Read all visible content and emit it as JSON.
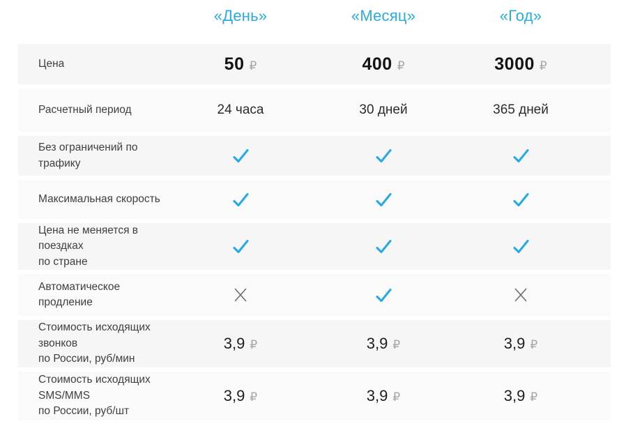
{
  "table": {
    "columns": [
      "«День»",
      "«Месяц»",
      "«Год»"
    ],
    "currency": "₽",
    "colors": {
      "accent_blue": "#29abe2",
      "check": "#29abe2",
      "cross": "#6e6e6e"
    },
    "rows": [
      {
        "label": "Цена",
        "type": "price",
        "values": [
          "50",
          "400",
          "3000"
        ]
      },
      {
        "label": "Расчетный период",
        "type": "text",
        "values": [
          "24 часа",
          "30 дней",
          "365 дней"
        ]
      },
      {
        "label": "Без ограничений по трафику",
        "type": "bool",
        "values": [
          true,
          true,
          true
        ]
      },
      {
        "label": "Максимальная скорость",
        "type": "bool",
        "values": [
          true,
          true,
          true
        ]
      },
      {
        "label": "Цена не меняется в поездках\nпо стране",
        "type": "bool",
        "values": [
          true,
          true,
          true
        ]
      },
      {
        "label": "Автоматическое продление",
        "type": "bool",
        "values": [
          false,
          true,
          false
        ]
      },
      {
        "label": "Стоимость исходящих звонков\nпо России, руб/мин",
        "type": "price-small",
        "values": [
          "3,9",
          "3,9",
          "3,9"
        ]
      },
      {
        "label": "Стоимость исходящих SMS/MMS\nпо России, руб/шт",
        "type": "price-small",
        "values": [
          "3,9",
          "3,9",
          "3,9"
        ]
      }
    ]
  }
}
